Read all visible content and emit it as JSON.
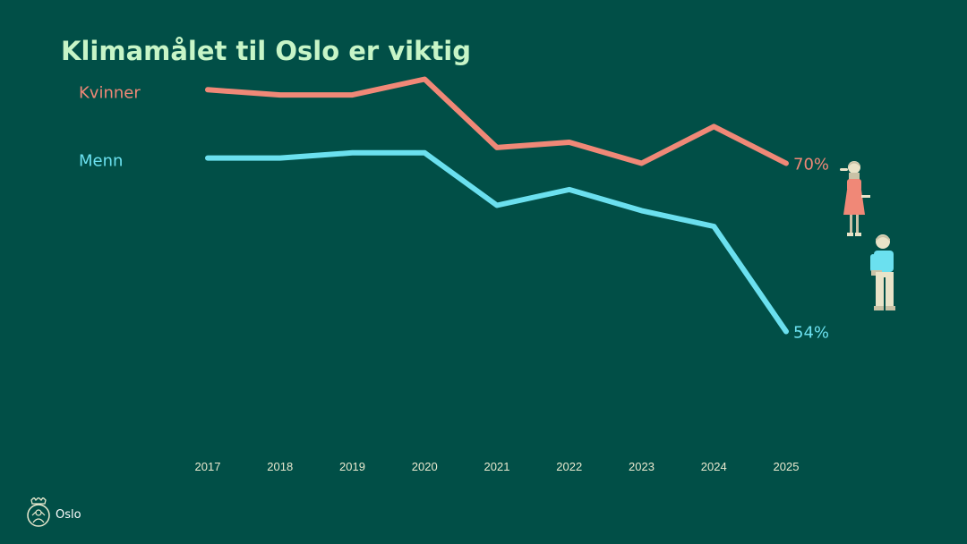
{
  "title": "Klimamålet til Oslo er viktig",
  "chart_data": {
    "type": "line",
    "x": [
      "2017",
      "2018",
      "2019",
      "2020",
      "2021",
      "2022",
      "2023",
      "2024",
      "2025"
    ],
    "ylim": [
      40,
      80
    ],
    "grid": false,
    "series": [
      {
        "name": "Kvinner",
        "color": "#f08877",
        "values": [
          77,
          76.5,
          76.5,
          78,
          71.5,
          72,
          70,
          73.5,
          70
        ],
        "end_label": "70%"
      },
      {
        "name": "Menn",
        "color": "#6be0ef",
        "values": [
          70.5,
          70.5,
          71,
          71,
          66,
          67.5,
          65.5,
          64,
          54
        ],
        "end_label": "54%"
      }
    ]
  },
  "footer": {
    "org": "Oslo",
    "logo_icon": "oslo-coat-of-arms-icon"
  },
  "icons": {
    "woman": "woman-figure-icon",
    "man": "man-figure-icon"
  }
}
